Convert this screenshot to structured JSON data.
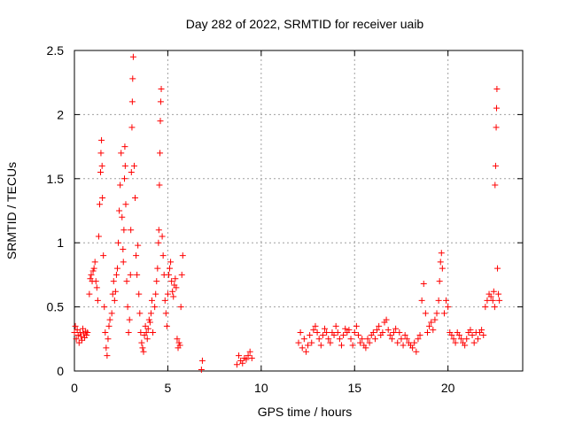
{
  "chart_data": {
    "type": "scatter",
    "title": "Day 282 of 2022, SRMTID for receiver uaib",
    "xlabel": "GPS time / hours",
    "ylabel": "SRMTID / TECUs",
    "xlim": [
      0,
      24
    ],
    "ylim": [
      0,
      2.5
    ],
    "x_ticks": [
      0,
      5,
      10,
      15,
      20
    ],
    "x_tick_labels": [
      "0",
      "5",
      "10",
      "15",
      "20"
    ],
    "y_ticks": [
      0,
      0.5,
      1,
      1.5,
      2,
      2.5
    ],
    "y_tick_labels": [
      "0",
      "0.5",
      "1",
      "1.5",
      "2",
      "2.5"
    ],
    "grid": true,
    "marker": "plus",
    "series": [
      {
        "name": "SRMTID",
        "color": "#ff0000",
        "x": [
          0.0,
          0.05,
          0.1,
          0.15,
          0.2,
          0.25,
          0.3,
          0.35,
          0.4,
          0.45,
          0.5,
          0.55,
          0.6,
          0.65,
          0.7,
          0.8,
          0.85,
          0.9,
          0.95,
          1.0,
          1.05,
          1.1,
          1.15,
          1.2,
          1.25,
          1.3,
          1.35,
          1.4,
          1.42,
          1.45,
          1.48,
          1.5,
          1.55,
          1.6,
          1.65,
          1.7,
          1.75,
          1.8,
          1.85,
          1.9,
          2.0,
          2.05,
          2.1,
          2.15,
          2.2,
          2.25,
          2.3,
          2.35,
          2.4,
          2.45,
          2.5,
          2.55,
          2.6,
          2.62,
          2.65,
          2.68,
          2.7,
          2.72,
          2.75,
          2.8,
          2.85,
          2.9,
          2.95,
          3.0,
          3.02,
          3.05,
          3.08,
          3.1,
          3.12,
          3.15,
          3.2,
          3.25,
          3.3,
          3.35,
          3.4,
          3.45,
          3.5,
          3.55,
          3.6,
          3.65,
          3.7,
          3.75,
          3.8,
          3.85,
          3.9,
          3.95,
          4.0,
          4.05,
          4.1,
          4.15,
          4.2,
          4.3,
          4.35,
          4.4,
          4.45,
          4.5,
          4.52,
          4.55,
          4.58,
          4.6,
          4.62,
          4.65,
          4.7,
          4.75,
          4.8,
          4.85,
          4.9,
          4.95,
          5.0,
          5.05,
          5.1,
          5.15,
          5.2,
          5.25,
          5.3,
          5.35,
          5.4,
          5.45,
          5.5,
          5.55,
          5.6,
          5.65,
          5.7,
          5.75,
          5.8,
          6.8,
          6.85,
          8.7,
          8.8,
          8.9,
          9.0,
          9.1,
          9.2,
          9.3,
          9.4,
          9.5,
          12.0,
          12.1,
          12.2,
          12.3,
          12.4,
          12.5,
          12.6,
          12.7,
          12.8,
          12.9,
          13.0,
          13.1,
          13.2,
          13.3,
          13.4,
          13.5,
          13.6,
          13.7,
          13.8,
          13.9,
          14.0,
          14.1,
          14.2,
          14.3,
          14.4,
          14.5,
          14.6,
          14.7,
          14.8,
          14.9,
          15.0,
          15.1,
          15.2,
          15.3,
          15.4,
          15.5,
          15.6,
          15.7,
          15.8,
          15.9,
          16.0,
          16.1,
          16.2,
          16.3,
          16.4,
          16.5,
          16.6,
          16.7,
          16.8,
          16.9,
          17.0,
          17.1,
          17.2,
          17.3,
          17.4,
          17.5,
          17.6,
          17.7,
          17.8,
          17.9,
          18.0,
          18.1,
          18.2,
          18.3,
          18.4,
          18.5,
          18.6,
          18.7,
          18.8,
          18.9,
          19.0,
          19.1,
          19.2,
          19.3,
          19.4,
          19.5,
          19.55,
          19.6,
          19.65,
          19.7,
          19.8,
          19.9,
          20.0,
          20.1,
          20.2,
          20.3,
          20.4,
          20.5,
          20.6,
          20.7,
          20.8,
          20.9,
          21.0,
          21.1,
          21.2,
          21.3,
          21.4,
          21.5,
          21.6,
          21.7,
          21.8,
          21.9,
          22.0,
          22.1,
          22.2,
          22.3,
          22.4,
          22.45,
          22.5,
          22.52,
          22.55,
          22.58,
          22.6,
          22.62,
          22.65,
          22.7,
          22.75
        ],
        "y": [
          0.3,
          0.35,
          0.25,
          0.32,
          0.28,
          0.22,
          0.3,
          0.27,
          0.24,
          0.33,
          0.29,
          0.26,
          0.31,
          0.28,
          0.3,
          0.6,
          0.72,
          0.75,
          0.7,
          0.78,
          0.8,
          0.85,
          0.7,
          0.65,
          0.55,
          1.05,
          1.3,
          1.55,
          1.7,
          1.8,
          1.6,
          1.35,
          0.9,
          0.5,
          0.3,
          0.18,
          0.12,
          0.25,
          0.35,
          0.4,
          0.45,
          0.6,
          0.7,
          0.55,
          0.62,
          0.75,
          0.8,
          1.0,
          1.25,
          1.45,
          1.7,
          1.2,
          0.95,
          0.85,
          1.1,
          1.5,
          1.75,
          1.6,
          1.3,
          0.7,
          0.5,
          0.3,
          0.4,
          0.75,
          1.1,
          1.55,
          1.9,
          2.1,
          2.28,
          2.45,
          1.6,
          1.35,
          0.9,
          0.75,
          0.98,
          0.6,
          0.45,
          0.3,
          0.22,
          0.18,
          0.15,
          0.28,
          0.35,
          0.3,
          0.25,
          0.33,
          0.4,
          0.38,
          0.45,
          0.55,
          0.3,
          0.5,
          0.6,
          0.7,
          0.8,
          1.0,
          1.1,
          1.45,
          1.7,
          1.95,
          2.1,
          2.2,
          1.05,
          0.9,
          0.75,
          0.55,
          0.45,
          0.35,
          0.6,
          0.75,
          0.8,
          0.85,
          0.7,
          0.62,
          0.58,
          0.67,
          0.72,
          0.65,
          0.25,
          0.18,
          0.22,
          0.2,
          0.5,
          0.75,
          0.9,
          0.01,
          0.08,
          0.05,
          0.12,
          0.08,
          0.06,
          0.1,
          0.09,
          0.12,
          0.15,
          0.1,
          0.22,
          0.3,
          0.18,
          0.25,
          0.15,
          0.2,
          0.28,
          0.22,
          0.32,
          0.35,
          0.3,
          0.25,
          0.2,
          0.28,
          0.33,
          0.3,
          0.25,
          0.22,
          0.3,
          0.28,
          0.35,
          0.3,
          0.25,
          0.2,
          0.28,
          0.33,
          0.3,
          0.32,
          0.25,
          0.2,
          0.3,
          0.35,
          0.28,
          0.22,
          0.25,
          0.2,
          0.18,
          0.25,
          0.22,
          0.28,
          0.3,
          0.25,
          0.32,
          0.35,
          0.28,
          0.3,
          0.38,
          0.4,
          0.32,
          0.28,
          0.25,
          0.3,
          0.33,
          0.22,
          0.3,
          0.25,
          0.2,
          0.28,
          0.25,
          0.22,
          0.2,
          0.18,
          0.22,
          0.15,
          0.25,
          0.28,
          0.55,
          0.68,
          0.45,
          0.3,
          0.35,
          0.38,
          0.32,
          0.4,
          0.45,
          0.55,
          0.7,
          0.85,
          0.92,
          0.8,
          0.45,
          0.55,
          0.5,
          0.3,
          0.28,
          0.25,
          0.22,
          0.3,
          0.28,
          0.25,
          0.22,
          0.2,
          0.25,
          0.3,
          0.32,
          0.28,
          0.22,
          0.3,
          0.25,
          0.3,
          0.32,
          0.28,
          0.5,
          0.55,
          0.6,
          0.58,
          0.55,
          0.62,
          0.5,
          1.45,
          1.6,
          1.9,
          2.05,
          2.2,
          0.8,
          0.6,
          0.55
        ]
      }
    ]
  }
}
